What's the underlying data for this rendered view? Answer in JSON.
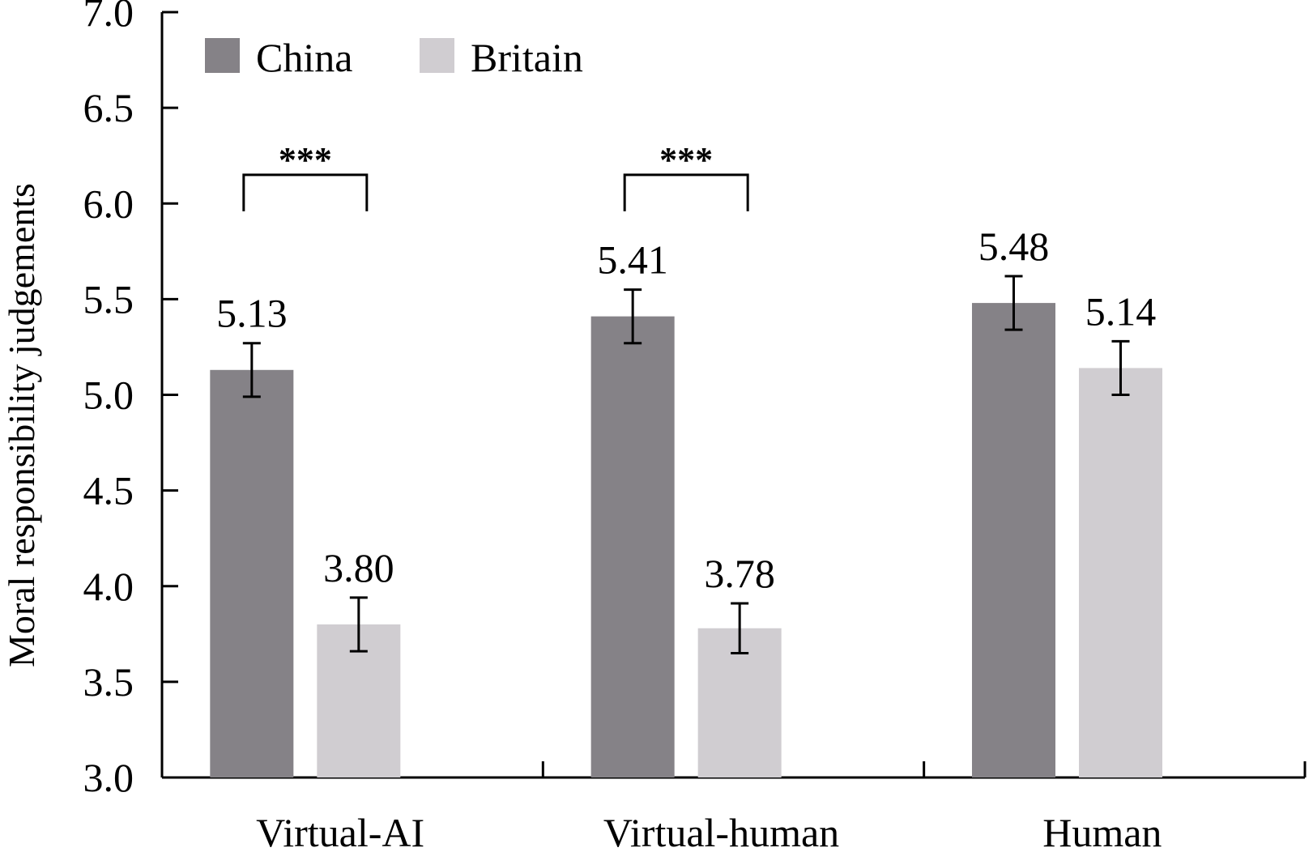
{
  "chart_data": {
    "type": "bar",
    "ylabel": "Moral responsibility judgements",
    "xlabel": "",
    "ylim": [
      3.0,
      7.0
    ],
    "yticks": [
      "3.0",
      "3.5",
      "4.0",
      "4.5",
      "5.0",
      "5.5",
      "6.0",
      "6.5",
      "7.0"
    ],
    "categories": [
      "Virtual-AI",
      "Virtual-human",
      "Human"
    ],
    "legend_position": "top-left",
    "grid": false,
    "series": [
      {
        "name": "China",
        "color": "#858287",
        "values": [
          5.13,
          5.41,
          5.48
        ],
        "labels": [
          "5.13",
          "5.41",
          "5.48"
        ],
        "error": [
          0.14,
          0.14,
          0.14
        ]
      },
      {
        "name": "Britain",
        "color": "#d0cdd1",
        "values": [
          3.8,
          3.78,
          5.14
        ],
        "labels": [
          "3.80",
          "3.78",
          "5.14"
        ],
        "error": [
          0.14,
          0.13,
          0.14
        ]
      }
    ],
    "significance": [
      {
        "category_index": 0,
        "label": "***",
        "y": 6.15
      },
      {
        "category_index": 1,
        "label": "***",
        "y": 6.15
      }
    ]
  }
}
